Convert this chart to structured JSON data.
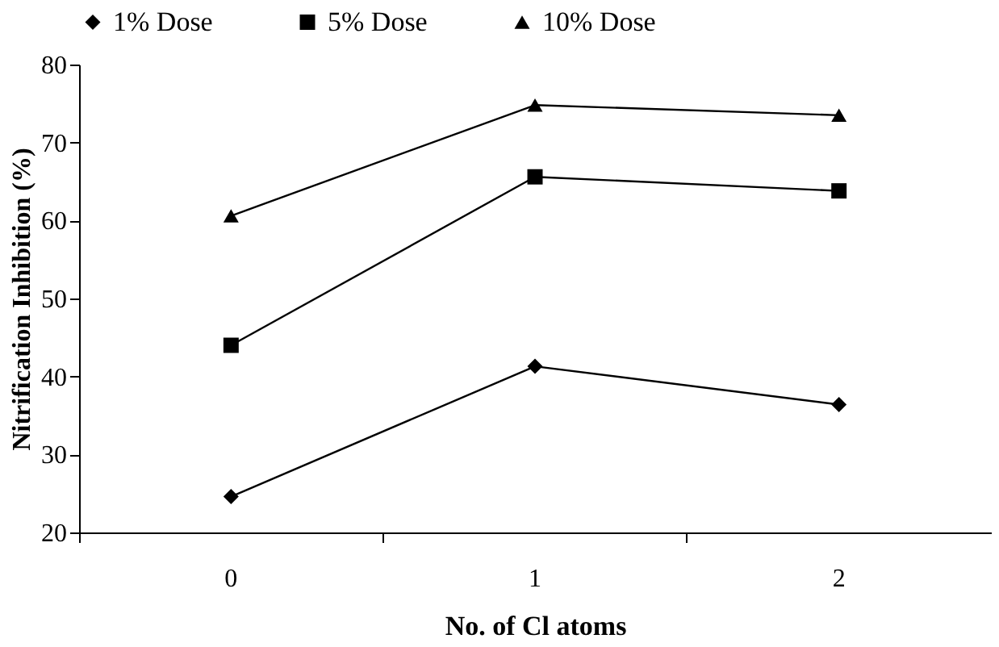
{
  "chart_data": {
    "type": "line",
    "xlabel": "No. of Cl atoms",
    "ylabel": "Nitrification Inhibition (%)",
    "categories": [
      "0",
      "1",
      "2"
    ],
    "series": [
      {
        "name": "1% Dose",
        "color": "#000000",
        "marker": "diamond",
        "values": [
          24.6,
          41.3,
          36.4
        ]
      },
      {
        "name": "5% Dose",
        "color": "#000000",
        "marker": "square",
        "values": [
          44.0,
          65.6,
          63.8
        ]
      },
      {
        "name": "10% Dose",
        "color": "#000000",
        "marker": "triangle",
        "values": [
          60.6,
          74.8,
          73.5
        ]
      }
    ],
    "ylim": [
      20,
      80
    ],
    "yticks": [
      20,
      30,
      40,
      50,
      60,
      70,
      80
    ],
    "grid": false,
    "legend": "top",
    "line_style": "solid"
  }
}
